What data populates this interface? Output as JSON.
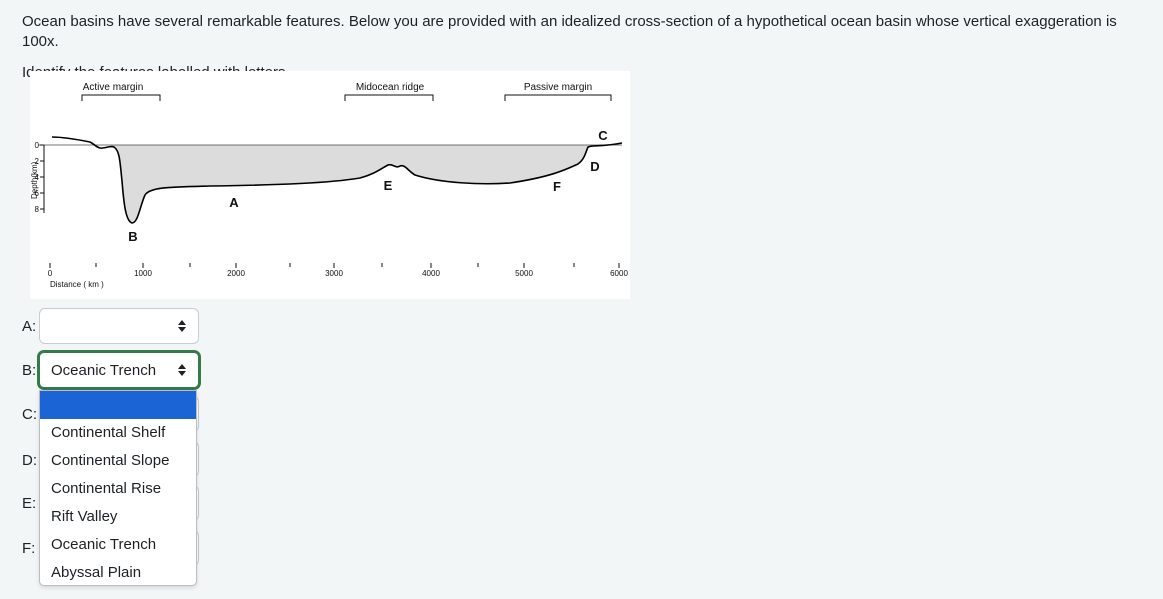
{
  "question": {
    "line1": "Ocean basins have several remarkable features. Below you are provided with an idealized cross-section of a hypothetical ocean basin whose vertical exaggeration is 100x.",
    "line2": "Identify the features labelled with letters."
  },
  "figure": {
    "region_labels": [
      "Active margin",
      "Midocean ridge",
      "Passive margin"
    ],
    "y_axis_label": "Depth(km)",
    "y_ticks": [
      "0",
      "2",
      "4",
      "6",
      "8"
    ],
    "x_axis_label": "Distance ( km )",
    "x_ticks": [
      "0",
      "1000",
      "2000",
      "3000",
      "4000",
      "5000",
      "6000"
    ],
    "feature_letters": {
      "A": "A",
      "B": "B",
      "C": "C",
      "D": "D",
      "E": "E",
      "F": "F"
    }
  },
  "answers": [
    {
      "label": "A:",
      "value": ""
    },
    {
      "label": "B:",
      "value": "Oceanic Trench"
    },
    {
      "label": "C:",
      "value": ""
    },
    {
      "label": "D:",
      "value": ""
    },
    {
      "label": "E:",
      "value": ""
    },
    {
      "label": "F:",
      "value": ""
    }
  ],
  "dropdown": {
    "options": [
      "",
      "Continental Shelf",
      "Continental Slope",
      "Continental Rise",
      "Rift Valley",
      "Oceanic Trench",
      "Abyssal Plain"
    ],
    "highlighted_index": 0
  },
  "colors": {
    "focus_border": "#357a4a",
    "highlight": "#1a64d6",
    "water_fill": "#dcdcdc"
  }
}
